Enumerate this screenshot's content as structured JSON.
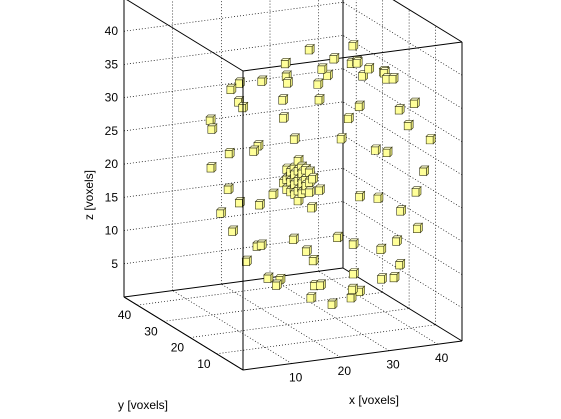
{
  "chart_data": {
    "type": "scatter",
    "title": "",
    "xlabel": "x [voxels]",
    "ylabel": "y [voxels]",
    "zlabel": "z [voxels]",
    "xlim": [
      0,
      45
    ],
    "ylim": [
      0,
      45
    ],
    "zlim": [
      0,
      45
    ],
    "x_ticks": [
      "10",
      "20",
      "30",
      "40"
    ],
    "y_ticks": [
      "10",
      "20",
      "30",
      "40"
    ],
    "z_ticks": [
      "5",
      "10",
      "15",
      "20",
      "25",
      "30",
      "35",
      "40"
    ],
    "grid": true,
    "marker": "cube",
    "marker_color": "#ffff99",
    "edge_color": "#3a3a1a",
    "shell_points": [
      [
        31,
        14,
        40
      ],
      [
        29,
        10,
        41
      ],
      [
        33,
        13,
        39
      ],
      [
        28,
        17,
        40
      ],
      [
        35,
        10,
        38
      ],
      [
        25,
        16,
        39
      ],
      [
        38,
        13,
        37
      ],
      [
        22,
        12,
        38
      ],
      [
        40,
        20,
        36
      ],
      [
        19,
        18,
        37
      ],
      [
        42,
        24,
        35
      ],
      [
        17,
        24,
        36
      ],
      [
        37,
        27,
        36
      ],
      [
        24,
        28,
        37
      ],
      [
        30,
        30,
        38
      ],
      [
        33,
        19,
        41
      ],
      [
        28,
        35,
        33
      ],
      [
        20,
        38,
        32
      ],
      [
        37,
        36,
        32
      ],
      [
        15,
        32,
        33
      ],
      [
        41,
        30,
        33
      ],
      [
        12,
        22,
        33
      ],
      [
        44,
        16,
        32
      ],
      [
        16,
        14,
        33
      ],
      [
        36,
        7,
        34
      ],
      [
        25,
        6,
        34
      ],
      [
        30,
        40,
        28
      ],
      [
        22,
        42,
        28
      ],
      [
        38,
        41,
        27
      ],
      [
        14,
        38,
        27
      ],
      [
        43,
        35,
        27
      ],
      [
        10,
        30,
        28
      ],
      [
        46,
        22,
        27
      ],
      [
        11,
        16,
        28
      ],
      [
        44,
        10,
        28
      ],
      [
        30,
        5,
        29
      ],
      [
        26,
        42,
        21
      ],
      [
        34,
        43,
        21
      ],
      [
        19,
        40,
        21
      ],
      [
        42,
        40,
        21
      ],
      [
        12,
        34,
        21
      ],
      [
        46,
        30,
        21
      ],
      [
        9,
        22,
        21
      ],
      [
        47,
        18,
        21
      ],
      [
        10,
        12,
        21
      ],
      [
        40,
        8,
        21
      ],
      [
        18,
        7,
        21
      ],
      [
        30,
        4,
        22
      ],
      [
        28,
        40,
        14
      ],
      [
        20,
        38,
        14
      ],
      [
        37,
        39,
        14
      ],
      [
        14,
        34,
        14
      ],
      [
        42,
        33,
        14
      ],
      [
        11,
        24,
        14
      ],
      [
        45,
        23,
        14
      ],
      [
        12,
        15,
        14
      ],
      [
        43,
        13,
        14
      ],
      [
        18,
        9,
        14
      ],
      [
        36,
        8,
        14
      ],
      [
        26,
        6,
        15
      ],
      [
        30,
        36,
        8
      ],
      [
        22,
        35,
        8
      ],
      [
        38,
        34,
        8
      ],
      [
        16,
        28,
        8
      ],
      [
        42,
        25,
        8
      ],
      [
        15,
        18,
        8
      ],
      [
        41,
        16,
        8
      ],
      [
        22,
        11,
        8
      ],
      [
        34,
        10,
        8
      ],
      [
        28,
        10,
        7
      ],
      [
        30,
        28,
        3
      ],
      [
        26,
        22,
        3
      ],
      [
        36,
        22,
        3
      ],
      [
        31,
        16,
        4
      ],
      [
        24,
        30,
        4
      ],
      [
        38,
        28,
        4
      ],
      [
        20,
        24,
        5
      ],
      [
        42,
        20,
        5
      ],
      [
        33,
        34,
        5
      ],
      [
        26,
        14,
        4
      ]
    ],
    "center_cluster": {
      "center": [
        25,
        25,
        20
      ],
      "radius": 3
    }
  }
}
